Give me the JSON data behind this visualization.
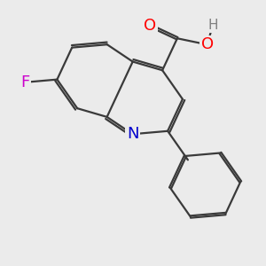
{
  "background_color": "#ebebeb",
  "bond_color": "#3a3a3a",
  "bond_width": 1.6,
  "atom_colors": {
    "O": "#ff0000",
    "N": "#0000cc",
    "F": "#cc00cc",
    "H": "#808080",
    "C": "#000000"
  },
  "font_size": 11,
  "figsize": [
    3.0,
    3.0
  ],
  "dpi": 100
}
